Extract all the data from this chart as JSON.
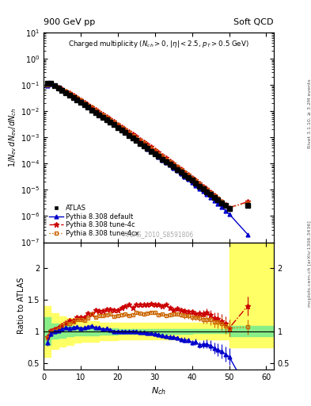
{
  "title_left": "900 GeV pp",
  "title_right": "Soft QCD",
  "right_label_top": "Rivet 3.1.10, ≥ 3.2M events",
  "right_label_bottom": "mcplots.cern.ch [arXiv:1306.3436]",
  "watermark": "ATLAS_2010_S8591806",
  "ylabel_main": "$1/N_{ev}\\/ dN_{ev}/dN_{ch}$",
  "ylabel_ratio": "Ratio to ATLAS",
  "xlabel": "$N_{ch}$",
  "xlim": [
    0,
    62
  ],
  "ylim_main": [
    1e-07,
    10
  ],
  "ylim_ratio": [
    0.4,
    2.4
  ],
  "data_x": [
    1,
    2,
    3,
    4,
    5,
    6,
    7,
    8,
    9,
    10,
    11,
    12,
    13,
    14,
    15,
    16,
    17,
    18,
    19,
    20,
    21,
    22,
    23,
    24,
    25,
    26,
    27,
    28,
    29,
    30,
    31,
    32,
    33,
    34,
    35,
    36,
    37,
    38,
    39,
    40,
    41,
    42,
    43,
    44,
    45,
    46,
    47,
    48,
    49,
    50,
    55
  ],
  "data_y": [
    0.115,
    0.112,
    0.093,
    0.077,
    0.063,
    0.051,
    0.042,
    0.034,
    0.027,
    0.022,
    0.018,
    0.014,
    0.011,
    0.009,
    0.0072,
    0.0058,
    0.0046,
    0.0037,
    0.003,
    0.0024,
    0.0019,
    0.0015,
    0.0012,
    0.00095,
    0.00075,
    0.0006,
    0.00048,
    0.00038,
    0.0003,
    0.00024,
    0.00019,
    0.00015,
    0.00012,
    9.5e-05,
    7.5e-05,
    5.9e-05,
    4.7e-05,
    3.7e-05,
    2.9e-05,
    2.3e-05,
    1.8e-05,
    1.4e-05,
    1.1e-05,
    8.5e-06,
    6.7e-06,
    5.3e-06,
    4.1e-06,
    3.2e-06,
    2.5e-06,
    2e-06,
    2.5e-06
  ],
  "pythia_default_x": [
    1,
    2,
    3,
    4,
    5,
    6,
    7,
    8,
    9,
    10,
    11,
    12,
    13,
    14,
    15,
    16,
    17,
    18,
    19,
    20,
    21,
    22,
    23,
    24,
    25,
    26,
    27,
    28,
    29,
    30,
    31,
    32,
    33,
    34,
    35,
    36,
    37,
    38,
    39,
    40,
    41,
    42,
    43,
    44,
    45,
    46,
    47,
    48,
    49,
    50,
    55
  ],
  "pythia_default_y": [
    0.095,
    0.107,
    0.093,
    0.078,
    0.065,
    0.054,
    0.044,
    0.036,
    0.029,
    0.023,
    0.019,
    0.015,
    0.012,
    0.0095,
    0.0076,
    0.006,
    0.0048,
    0.0038,
    0.003,
    0.0024,
    0.0019,
    0.0015,
    0.0012,
    0.00095,
    0.00075,
    0.00059,
    0.00047,
    0.00037,
    0.00029,
    0.00023,
    0.00018,
    0.00014,
    0.00011,
    8.7e-05,
    6.8e-05,
    5.3e-05,
    4.1e-05,
    3.2e-05,
    2.5e-05,
    1.9e-05,
    1.5e-05,
    1.1e-05,
    8.8e-06,
    6.8e-06,
    5.2e-06,
    3.9e-06,
    2.9e-06,
    2.2e-06,
    1.6e-06,
    1.2e-06,
    2e-07
  ],
  "pythia_4c_x": [
    1,
    2,
    3,
    4,
    5,
    6,
    7,
    8,
    9,
    10,
    11,
    12,
    13,
    14,
    15,
    16,
    17,
    18,
    19,
    20,
    21,
    22,
    23,
    24,
    25,
    26,
    27,
    28,
    29,
    30,
    31,
    32,
    33,
    34,
    35,
    36,
    37,
    38,
    39,
    40,
    41,
    42,
    43,
    44,
    45,
    46,
    47,
    48,
    49,
    50,
    55
  ],
  "pythia_4c_y": [
    0.105,
    0.113,
    0.096,
    0.082,
    0.069,
    0.058,
    0.049,
    0.04,
    0.033,
    0.027,
    0.022,
    0.018,
    0.014,
    0.012,
    0.0095,
    0.0077,
    0.0062,
    0.005,
    0.004,
    0.0032,
    0.0026,
    0.0021,
    0.0017,
    0.0013,
    0.00107,
    0.00085,
    0.00068,
    0.00054,
    0.00043,
    0.00034,
    0.00027,
    0.00021,
    0.00017,
    0.00013,
    0.0001,
    8e-05,
    6.3e-05,
    4.9e-05,
    3.8e-05,
    3e-05,
    2.3e-05,
    1.8e-05,
    1.4e-05,
    1.1e-05,
    8.4e-06,
    6.4e-06,
    4.9e-06,
    3.7e-06,
    2.8e-06,
    2.1e-06,
    3.5e-06
  ],
  "pythia_4cx_x": [
    1,
    2,
    3,
    4,
    5,
    6,
    7,
    8,
    9,
    10,
    11,
    12,
    13,
    14,
    15,
    16,
    17,
    18,
    19,
    20,
    21,
    22,
    23,
    24,
    25,
    26,
    27,
    28,
    29,
    30,
    31,
    32,
    33,
    34,
    35,
    36,
    37,
    38,
    39,
    40,
    41,
    42,
    43,
    44,
    45,
    46,
    47,
    48,
    49,
    50,
    55
  ],
  "pythia_4cx_y": [
    0.103,
    0.111,
    0.094,
    0.08,
    0.068,
    0.057,
    0.047,
    0.039,
    0.032,
    0.026,
    0.021,
    0.017,
    0.014,
    0.011,
    0.009,
    0.0072,
    0.0058,
    0.0047,
    0.0037,
    0.003,
    0.0024,
    0.0019,
    0.0015,
    0.0012,
    0.00097,
    0.00077,
    0.00061,
    0.00049,
    0.00039,
    0.00031,
    0.00024,
    0.00019,
    0.00015,
    0.00012,
    9.5e-05,
    7.5e-05,
    5.9e-05,
    4.6e-05,
    3.6e-05,
    2.8e-05,
    2.2e-05,
    1.7e-05,
    1.3e-05,
    1e-05,
    7.9e-06,
    6.1e-06,
    4.7e-06,
    3.6e-06,
    2.7e-06,
    2.1e-06,
    3.2e-06
  ],
  "ratio_default_y": [
    0.826,
    0.955,
    1.0,
    1.013,
    1.032,
    1.059,
    1.048,
    1.059,
    1.074,
    1.045,
    1.056,
    1.071,
    1.091,
    1.056,
    1.056,
    1.034,
    1.043,
    1.027,
    1.0,
    1.0,
    1.0,
    1.0,
    1.0,
    1.0,
    1.0,
    0.983,
    0.979,
    0.974,
    0.967,
    0.958,
    0.947,
    0.933,
    0.917,
    0.916,
    0.907,
    0.898,
    0.872,
    0.865,
    0.862,
    0.826,
    0.833,
    0.786,
    0.8,
    0.8,
    0.776,
    0.736,
    0.707,
    0.688,
    0.64,
    0.6,
    0.08
  ],
  "ratio_4c_y": [
    0.913,
    1.009,
    1.032,
    1.065,
    1.095,
    1.137,
    1.167,
    1.176,
    1.222,
    1.227,
    1.222,
    1.286,
    1.273,
    1.333,
    1.319,
    1.328,
    1.348,
    1.351,
    1.333,
    1.333,
    1.368,
    1.4,
    1.417,
    1.368,
    1.427,
    1.417,
    1.417,
    1.421,
    1.433,
    1.417,
    1.421,
    1.4,
    1.417,
    1.368,
    1.333,
    1.356,
    1.34,
    1.324,
    1.31,
    1.304,
    1.278,
    1.286,
    1.273,
    1.294,
    1.254,
    1.208,
    1.195,
    1.156,
    1.12,
    1.05,
    1.4
  ],
  "ratio_4cx_y": [
    0.896,
    0.991,
    1.011,
    1.039,
    1.079,
    1.118,
    1.119,
    1.147,
    1.185,
    1.182,
    1.167,
    1.214,
    1.273,
    1.222,
    1.25,
    1.241,
    1.261,
    1.27,
    1.233,
    1.25,
    1.263,
    1.267,
    1.25,
    1.263,
    1.293,
    1.283,
    1.271,
    1.289,
    1.3,
    1.292,
    1.263,
    1.267,
    1.25,
    1.263,
    1.267,
    1.271,
    1.255,
    1.243,
    1.241,
    1.217,
    1.222,
    1.214,
    1.182,
    1.188,
    1.179,
    1.151,
    1.146,
    1.125,
    1.08,
    1.05,
    1.067
  ],
  "ratio_default_yerr": [
    0.05,
    0.03,
    0.02,
    0.02,
    0.02,
    0.02,
    0.02,
    0.02,
    0.02,
    0.02,
    0.02,
    0.02,
    0.02,
    0.02,
    0.02,
    0.02,
    0.02,
    0.02,
    0.02,
    0.02,
    0.02,
    0.02,
    0.02,
    0.02,
    0.02,
    0.02,
    0.02,
    0.02,
    0.02,
    0.02,
    0.02,
    0.02,
    0.02,
    0.03,
    0.03,
    0.03,
    0.03,
    0.04,
    0.04,
    0.04,
    0.05,
    0.05,
    0.06,
    0.07,
    0.08,
    0.09,
    0.1,
    0.11,
    0.12,
    0.13,
    0.09
  ],
  "ratio_4c_yerr": [
    0.05,
    0.03,
    0.02,
    0.02,
    0.02,
    0.02,
    0.02,
    0.02,
    0.02,
    0.02,
    0.02,
    0.02,
    0.02,
    0.02,
    0.02,
    0.02,
    0.02,
    0.02,
    0.02,
    0.02,
    0.02,
    0.02,
    0.02,
    0.02,
    0.02,
    0.02,
    0.02,
    0.02,
    0.02,
    0.02,
    0.02,
    0.02,
    0.02,
    0.03,
    0.03,
    0.03,
    0.03,
    0.04,
    0.04,
    0.04,
    0.05,
    0.05,
    0.06,
    0.07,
    0.08,
    0.09,
    0.1,
    0.11,
    0.12,
    0.13,
    0.15
  ],
  "ratio_4cx_yerr": [
    0.05,
    0.03,
    0.02,
    0.02,
    0.02,
    0.02,
    0.02,
    0.02,
    0.02,
    0.02,
    0.02,
    0.02,
    0.02,
    0.02,
    0.02,
    0.02,
    0.02,
    0.02,
    0.02,
    0.02,
    0.02,
    0.02,
    0.02,
    0.02,
    0.02,
    0.02,
    0.02,
    0.02,
    0.02,
    0.02,
    0.02,
    0.02,
    0.02,
    0.03,
    0.03,
    0.03,
    0.03,
    0.04,
    0.04,
    0.04,
    0.05,
    0.05,
    0.06,
    0.07,
    0.08,
    0.09,
    0.1,
    0.11,
    0.12,
    0.13,
    0.12
  ],
  "green_band_x": [
    0,
    2,
    4,
    6,
    8,
    10,
    15,
    20,
    25,
    30,
    35,
    40,
    45,
    50,
    55,
    62
  ],
  "green_band_lo": [
    0.78,
    0.88,
    0.9,
    0.92,
    0.93,
    0.94,
    0.95,
    0.96,
    0.96,
    0.96,
    0.96,
    0.97,
    0.97,
    0.92,
    0.92,
    0.92
  ],
  "green_band_hi": [
    1.22,
    1.12,
    1.1,
    1.08,
    1.07,
    1.06,
    1.05,
    1.04,
    1.04,
    1.04,
    1.04,
    1.03,
    1.03,
    1.08,
    1.08,
    1.08
  ],
  "yellow_band_x": [
    0,
    2,
    4,
    6,
    8,
    10,
    15,
    20,
    25,
    30,
    35,
    40,
    45,
    50,
    55,
    62
  ],
  "yellow_band_lo": [
    0.6,
    0.72,
    0.76,
    0.79,
    0.82,
    0.84,
    0.86,
    0.87,
    0.87,
    0.87,
    0.87,
    0.87,
    0.87,
    0.75,
    0.75,
    0.75
  ],
  "yellow_band_hi": [
    1.4,
    1.28,
    1.24,
    1.21,
    1.18,
    1.16,
    1.14,
    1.13,
    1.13,
    1.13,
    1.13,
    1.13,
    1.13,
    2.5,
    2.5,
    2.5
  ],
  "color_data": "#000000",
  "color_default": "#0000cc",
  "color_4c": "#cc0000",
  "color_4cx": "#cc6600",
  "legend_labels": [
    "ATLAS",
    "Pythia 8.308 default",
    "Pythia 8.308 tune-4c",
    "Pythia 8.308 tune-4cx"
  ]
}
